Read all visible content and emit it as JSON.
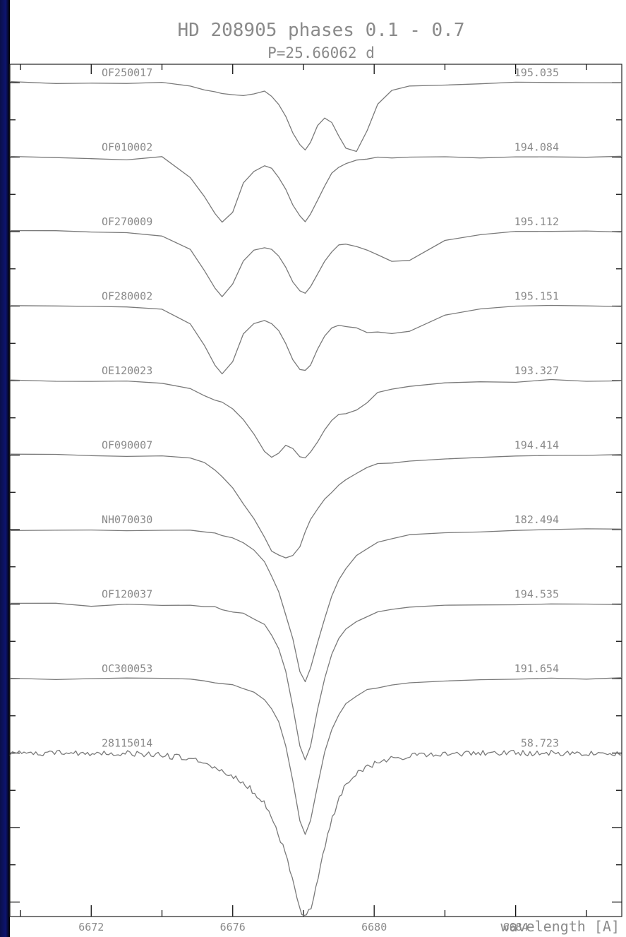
{
  "colors": {
    "background": "#000000",
    "left_strip": "#0d1470",
    "plot_background": "#ffffff",
    "spectrum_line": "#7a7a7a",
    "text": "#8a8a8a"
  },
  "chart_data": {
    "type": "line",
    "title": "HD 208905 phases 0.1 - 0.7",
    "subtitle": "P=25.66062 d",
    "xlabel": "wavelength [A]",
    "ylabel": "",
    "xlim": [
      6669.7,
      6687.0
    ],
    "xticks": [
      6672,
      6676,
      6680,
      6684
    ],
    "xtick_labels": [
      "6672",
      "6676",
      "6680",
      "6684"
    ],
    "grid": false,
    "x": [
      6669.7,
      6671,
      6672,
      6673,
      6674,
      6674.8,
      6675.2,
      6675.5,
      6675.7,
      6676,
      6676.3,
      6676.6,
      6676.9,
      6677.1,
      6677.3,
      6677.5,
      6677.7,
      6677.9,
      6678.05,
      6678.2,
      6678.4,
      6678.6,
      6678.8,
      6679,
      6679.2,
      6679.5,
      6679.8,
      6680.1,
      6680.5,
      6681,
      6682,
      6683,
      6684,
      6685,
      6686,
      6687
    ],
    "series": [
      {
        "name": "OF250017",
        "label": "195.035",
        "values": [
          0,
          0,
          0.02,
          0.01,
          0,
          0.05,
          0.1,
          0.14,
          0.16,
          0.17,
          0.17,
          0.15,
          0.13,
          0.18,
          0.3,
          0.48,
          0.7,
          0.88,
          0.95,
          0.85,
          0.6,
          0.5,
          0.56,
          0.76,
          0.94,
          0.98,
          0.68,
          0.32,
          0.12,
          0.05,
          0.02,
          0.01,
          0,
          0,
          0.01,
          0
        ]
      },
      {
        "name": "OF010002",
        "label": "194.084",
        "values": [
          0,
          0,
          0.02,
          0.04,
          0,
          0.28,
          0.55,
          0.8,
          0.92,
          0.78,
          0.38,
          0.2,
          0.12,
          0.16,
          0.28,
          0.46,
          0.68,
          0.84,
          0.9,
          0.8,
          0.6,
          0.4,
          0.24,
          0.14,
          0.08,
          0.05,
          0.02,
          0.01,
          0,
          0.01,
          0,
          0.01,
          0,
          0,
          0,
          0
        ]
      },
      {
        "name": "OF270009",
        "label": "195.112",
        "values": [
          0,
          0,
          0.01,
          0.02,
          0.05,
          0.25,
          0.55,
          0.8,
          0.92,
          0.74,
          0.42,
          0.25,
          0.22,
          0.26,
          0.34,
          0.5,
          0.7,
          0.84,
          0.86,
          0.78,
          0.6,
          0.42,
          0.3,
          0.2,
          0.18,
          0.2,
          0.26,
          0.34,
          0.42,
          0.4,
          0.14,
          0.04,
          0.01,
          0,
          0,
          0
        ]
      },
      {
        "name": "OF280002",
        "label": "195.151",
        "values": [
          0,
          0,
          0.01,
          0,
          0.04,
          0.24,
          0.55,
          0.85,
          0.95,
          0.8,
          0.4,
          0.24,
          0.2,
          0.26,
          0.36,
          0.54,
          0.76,
          0.9,
          0.92,
          0.85,
          0.62,
          0.42,
          0.3,
          0.28,
          0.3,
          0.32,
          0.36,
          0.38,
          0.38,
          0.36,
          0.12,
          0.03,
          0,
          0,
          0,
          0
        ]
      },
      {
        "name": "OE120023",
        "label": "193.327",
        "values": [
          0,
          0,
          0.01,
          0.02,
          0.05,
          0.12,
          0.2,
          0.28,
          0.32,
          0.4,
          0.55,
          0.75,
          1.0,
          1.1,
          1.03,
          0.92,
          0.97,
          1.08,
          1.1,
          1.0,
          0.86,
          0.7,
          0.55,
          0.48,
          0.46,
          0.42,
          0.3,
          0.17,
          0.12,
          0.08,
          0.04,
          0.02,
          0.01,
          0,
          0,
          0
        ]
      },
      {
        "name": "OF090007",
        "label": "194.414",
        "values": [
          0,
          0,
          0.02,
          0.01,
          0.02,
          0.05,
          0.1,
          0.2,
          0.3,
          0.45,
          0.68,
          0.9,
          1.15,
          1.36,
          1.42,
          1.45,
          1.42,
          1.3,
          1.1,
          0.9,
          0.75,
          0.62,
          0.52,
          0.42,
          0.34,
          0.25,
          0.18,
          0.13,
          0.1,
          0.07,
          0.05,
          0.02,
          0.01,
          0,
          0,
          0
        ]
      },
      {
        "name": "NH070030",
        "label": "182.494",
        "values": [
          0,
          0,
          0.02,
          0.03,
          0,
          0.02,
          0.04,
          0.06,
          0.08,
          0.12,
          0.18,
          0.28,
          0.45,
          0.65,
          0.88,
          1.2,
          1.55,
          2.0,
          2.15,
          1.95,
          1.6,
          1.25,
          0.95,
          0.72,
          0.55,
          0.38,
          0.26,
          0.17,
          0.12,
          0.08,
          0.05,
          0.03,
          0.01,
          0,
          0,
          0
        ]
      },
      {
        "name": "OF120037",
        "label": "194.535",
        "values": [
          0,
          0,
          0.02,
          0,
          0.01,
          0.02,
          0.03,
          0.05,
          0.07,
          0.1,
          0.14,
          0.2,
          0.3,
          0.44,
          0.62,
          0.95,
          1.45,
          2.0,
          2.2,
          2.0,
          1.5,
          1.05,
          0.72,
          0.5,
          0.35,
          0.24,
          0.17,
          0.12,
          0.08,
          0.05,
          0.03,
          0.02,
          0.01,
          0,
          0,
          0
        ]
      },
      {
        "name": "OC300053",
        "label": "191.654",
        "values": [
          0,
          0,
          0.01,
          0,
          0.01,
          0.02,
          0.03,
          0.05,
          0.07,
          0.1,
          0.14,
          0.2,
          0.3,
          0.44,
          0.62,
          0.95,
          1.45,
          2.0,
          2.2,
          2.0,
          1.5,
          1.05,
          0.72,
          0.5,
          0.35,
          0.24,
          0.17,
          0.12,
          0.08,
          0.05,
          0.03,
          0.02,
          0.01,
          0,
          0,
          0
        ]
      },
      {
        "name": "28115014",
        "label": "58.723",
        "values": [
          0,
          0,
          0,
          0,
          0.03,
          0.08,
          0.14,
          0.2,
          0.26,
          0.34,
          0.42,
          0.55,
          0.72,
          0.9,
          1.15,
          1.45,
          1.8,
          2.2,
          2.35,
          2.2,
          1.8,
          1.35,
          0.95,
          0.65,
          0.45,
          0.3,
          0.2,
          0.13,
          0.08,
          0.04,
          0.02,
          0,
          0,
          0,
          0,
          0
        ]
      }
    ]
  }
}
